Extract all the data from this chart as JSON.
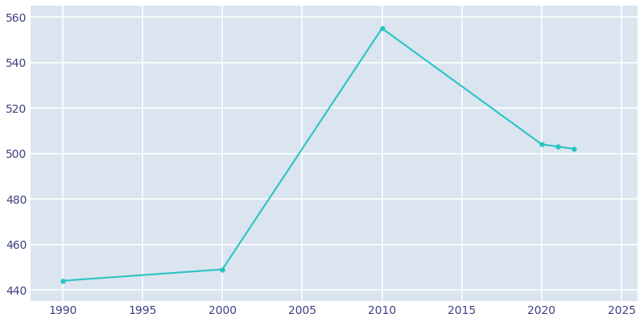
{
  "years": [
    1990,
    2000,
    2010,
    2020,
    2021,
    2022
  ],
  "population": [
    444,
    449,
    555,
    504,
    503,
    502
  ],
  "line_color": "#2AC4C4",
  "marker_color": "#2AC4C4",
  "plot_bg_color": "#DAE5F0",
  "fig_bg_color": "#FFFFFF",
  "ylim": [
    435,
    565
  ],
  "xlim": [
    1988,
    2026
  ],
  "yticks": [
    440,
    460,
    480,
    500,
    520,
    540,
    560
  ],
  "xticks": [
    1990,
    1995,
    2000,
    2005,
    2010,
    2015,
    2020,
    2025
  ],
  "grid_color": "#FFFFFF",
  "tick_label_color": "#3D4080",
  "line_width": 1.5,
  "marker_size": 3.5
}
